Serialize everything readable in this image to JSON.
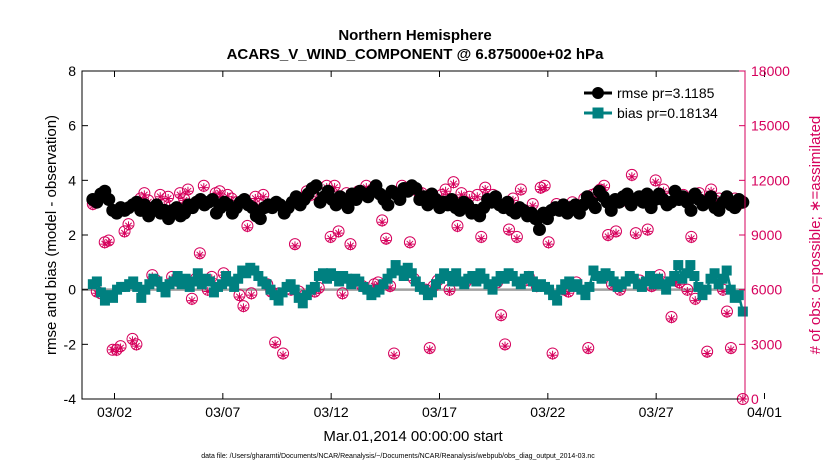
{
  "chart_data": {
    "type": "line",
    "title": "Northern Hemisphere",
    "subtitle": "ACARS_V_WIND_COMPONENT @ 6.875000e+02 hPa",
    "xlabel": "Mar.01,2014 00:00:00 start",
    "ylabel_left": "rmse and bias (model - observation)",
    "ylabel_right": "# of obs: o=possible; ∗=assimilated",
    "footnote": "data file: /Users/gharamti/Documents/NCAR/Reanalysis/~/Documents/NCAR/Reanalysis/webpub/obs_diag_output_2014-03.nc",
    "xlim": [
      0.5,
      31.1
    ],
    "ylim_left": [
      -4,
      8
    ],
    "ylim_right": [
      0,
      18000
    ],
    "x_ticks": [
      2,
      7,
      12,
      17,
      22,
      27,
      32
    ],
    "x_tick_labels": [
      "03/02",
      "03/07",
      "03/12",
      "03/17",
      "03/22",
      "03/27",
      "04/01"
    ],
    "yticks_left": [
      -4,
      -2,
      0,
      2,
      4,
      6,
      8
    ],
    "yticks_left_labels": [
      "-4",
      "-2",
      "0",
      "2",
      "4",
      "6",
      "8"
    ],
    "yticks_right": [
      0,
      3000,
      6000,
      9000,
      12000,
      15000,
      18000
    ],
    "yticks_right_labels": [
      "0",
      "3000",
      "6000",
      "9000",
      "12000",
      "15000",
      "18000"
    ],
    "legend_position": "top-right",
    "colors": {
      "rmse": "#000000",
      "bias": "#008080",
      "obs": "#d6005c",
      "zero_line": "#a0a0a0"
    },
    "series": [
      {
        "name": "rmse pr=3.1185",
        "axis": "left",
        "marker": "circle",
        "values": [
          3.3,
          3.2,
          3.5,
          3.6,
          3.3,
          2.9,
          2.8,
          3.0,
          2.9,
          3.0,
          3.1,
          3.2,
          2.9,
          3.1,
          2.7,
          2.9,
          3.1,
          2.8,
          2.9,
          2.6,
          2.9,
          3.0,
          2.7,
          2.8,
          3.1,
          3.0,
          3.2,
          3.3,
          3.1,
          3.2,
          3.3,
          2.8,
          3.0,
          3.2,
          3.1,
          2.8,
          3.0,
          3.2,
          3.3,
          3.1,
          3.0,
          2.7,
          2.6,
          3.0,
          3.1,
          3.0,
          3.2,
          3.1,
          2.8,
          3.0,
          3.2,
          3.4,
          3.1,
          3.3,
          3.5,
          3.7,
          3.8,
          3.2,
          3.4,
          3.6,
          3.3,
          3.1,
          3.4,
          3.2,
          3.0,
          3.5,
          3.3,
          3.6,
          3.5,
          3.4,
          3.6,
          3.8,
          3.5,
          3.3,
          3.1,
          3.6,
          3.5,
          3.3,
          3.7,
          3.6,
          3.8,
          3.7,
          3.3,
          3.4,
          3.1,
          3.5,
          3.3,
          3.0,
          3.2,
          3.1,
          3.3,
          3.0,
          2.9,
          3.2,
          3.1,
          2.8,
          2.9,
          2.7,
          3.0,
          3.3,
          3.2,
          3.4,
          3.1,
          3.0,
          3.2,
          2.9,
          2.8,
          3.0,
          2.9,
          2.7,
          2.8,
          2.6,
          2.2,
          2.8,
          2.6,
          2.9,
          3.0,
          2.9,
          3.1,
          2.8,
          3.0,
          3.1,
          2.8,
          3.1,
          3.4,
          3.2,
          3.0,
          3.6,
          3.4,
          3.2,
          2.9,
          3.3,
          3.2,
          3.4,
          3.5,
          3.1,
          3.3,
          3.4,
          3.2,
          3.5,
          3.0,
          3.3,
          3.5,
          3.3,
          3.1,
          3.2,
          3.6,
          3.3,
          3.4,
          3.2,
          2.9,
          3.5,
          3.3,
          3.1,
          3.2,
          3.4,
          3.0,
          2.9,
          3.2,
          3.4,
          3.1,
          3.0,
          3.3,
          3.2
        ]
      },
      {
        "name": "bias pr=0.18134",
        "axis": "left",
        "marker": "square",
        "values": [
          0.2,
          0.3,
          -0.1,
          -0.4,
          -0.2,
          -0.3,
          0.0,
          0.1,
          0.1,
          0.2,
          0.3,
          0.1,
          -0.3,
          0.0,
          0.2,
          0.4,
          0.3,
          0.1,
          -0.1,
          0.2,
          0.3,
          0.5,
          0.2,
          0.4,
          0.1,
          0.3,
          0.6,
          0.2,
          0.4,
          0.3,
          -0.1,
          0.1,
          0.2,
          0.5,
          0.3,
          0.1,
          0.4,
          0.7,
          0.6,
          0.8,
          0.7,
          0.5,
          0.3,
          0.2,
          0.0,
          -0.2,
          -0.4,
          -0.1,
          0.1,
          0.2,
          0.0,
          -0.3,
          -0.5,
          -0.2,
          0.0,
          0.1,
          0.5,
          0.6,
          0.4,
          0.6,
          0.5,
          0.3,
          0.5,
          0.4,
          0.2,
          0.4,
          0.3,
          0.1,
          0.0,
          -0.2,
          -0.1,
          0.0,
          0.2,
          0.4,
          0.6,
          0.9,
          0.7,
          0.5,
          0.8,
          0.6,
          0.3,
          0.1,
          0.0,
          -0.2,
          -0.1,
          0.2,
          0.4,
          0.6,
          0.5,
          0.3,
          0.6,
          0.3,
          0.2,
          0.4,
          0.5,
          0.3,
          0.6,
          0.4,
          0.2,
          0.0,
          0.3,
          0.5,
          0.4,
          0.6,
          0.5,
          0.3,
          0.2,
          0.4,
          0.5,
          0.3,
          0.1,
          0.2,
          0.1,
          0.0,
          -0.2,
          -0.4,
          0.0,
          0.2,
          0.3,
          0.1,
          0.2,
          0.0,
          -0.2,
          0.1,
          0.7,
          0.5,
          0.4,
          0.6,
          0.5,
          0.3,
          0.1,
          0.2,
          0.3,
          0.5,
          0.4,
          0.2,
          0.1,
          0.3,
          0.5,
          0.2,
          0.4,
          0.2,
          0.0,
          0.3,
          0.5,
          0.9,
          0.4,
          0.6,
          0.9,
          0.5,
          0.1,
          -0.2,
          0.0,
          0.4,
          0.6,
          0.2,
          0.4,
          0.7,
          0.0,
          -0.3,
          -0.2,
          -0.8
        ]
      },
      {
        "name": "obs possible",
        "axis": "right",
        "marker": "open-circle",
        "values": [
          10700,
          5900,
          5800,
          8600,
          8700,
          2700,
          2700,
          2900,
          9200,
          9600,
          3300,
          3000,
          11000,
          11300,
          10900,
          6800,
          6500,
          11200,
          10700,
          11100,
          6700,
          6500,
          11300,
          11000,
          11500,
          5500,
          6600,
          8000,
          11700,
          6000,
          6700,
          11300,
          11400,
          6900,
          11200,
          11000,
          10800,
          5700,
          5100,
          9500,
          5800,
          11100,
          10700,
          11200,
          6300,
          5900,
          3100,
          5800,
          2500,
          10500,
          6000,
          8500,
          5900,
          10900,
          11400,
          11200,
          5900,
          6100,
          11000,
          11700,
          8900,
          11700,
          9200,
          5800,
          11300,
          8500,
          11200,
          11400,
          6200,
          11700,
          11300,
          6300,
          6400,
          9800,
          8800,
          6200,
          2500,
          11200,
          11700,
          11500,
          8600,
          6600,
          11400,
          11300,
          6000,
          2800,
          6200,
          6500,
          11200,
          11500,
          6000,
          11900,
          9500,
          11300,
          6400,
          11100,
          6600,
          11200,
          8900,
          11600,
          10800,
          11200,
          6400,
          4600,
          3000,
          9300,
          11000,
          8900,
          11500,
          6500,
          6700,
          10700,
          6200,
          11600,
          11700,
          8600,
          2500,
          10700,
          10400,
          6000,
          5900,
          10800,
          6400,
          10600,
          11000,
          2800,
          11200,
          11300,
          11500,
          11700,
          9000,
          6300,
          9200,
          6000,
          10900,
          11000,
          12300,
          9100,
          6500,
          11000,
          9300,
          6200,
          12000,
          6800,
          11500,
          11000,
          4500,
          6500,
          6400,
          11200,
          6000,
          8900,
          5500,
          11300,
          10800,
          2600,
          11500,
          10900,
          11000,
          6000,
          4800,
          2800,
          11000,
          10700,
          0
        ]
      },
      {
        "name": "obs assimilated",
        "axis": "right",
        "marker": "asterisk",
        "values": [
          10600,
          5800,
          5700,
          8500,
          8600,
          2700,
          2600,
          2800,
          9100,
          9500,
          3200,
          2900,
          10900,
          11200,
          10800,
          6700,
          6400,
          11100,
          10600,
          11000,
          6600,
          6400,
          11200,
          10900,
          11400,
          5400,
          6500,
          7900,
          11600,
          5900,
          6600,
          11200,
          11300,
          6800,
          11100,
          10900,
          10700,
          5600,
          5000,
          9400,
          5700,
          11000,
          10600,
          11100,
          6200,
          5800,
          3000,
          5700,
          2400,
          10400,
          5900,
          8400,
          5800,
          10800,
          11300,
          11100,
          5800,
          6000,
          10900,
          11600,
          8800,
          11600,
          9100,
          5700,
          11200,
          8400,
          11100,
          11300,
          6100,
          11600,
          11200,
          6200,
          6300,
          9700,
          8700,
          6100,
          2400,
          11100,
          11600,
          11400,
          8500,
          6500,
          11300,
          11200,
          5900,
          2700,
          6100,
          6400,
          11100,
          11400,
          5900,
          11800,
          9400,
          11200,
          6300,
          11000,
          6500,
          11100,
          8800,
          11500,
          10700,
          11100,
          6300,
          4500,
          2900,
          9200,
          10900,
          8800,
          11400,
          6400,
          6600,
          10600,
          6100,
          11500,
          11600,
          8500,
          2400,
          10600,
          10300,
          5900,
          5800,
          10700,
          6300,
          10500,
          10900,
          2700,
          11100,
          11200,
          11400,
          11600,
          8900,
          6200,
          9100,
          5900,
          10800,
          10900,
          12200,
          9000,
          6400,
          10900,
          9200,
          6100,
          11900,
          6700,
          11400,
          10900,
          4400,
          6400,
          6300,
          11100,
          5900,
          8800,
          5400,
          11200,
          10700,
          2500,
          11400,
          10800,
          10900,
          5900,
          4700,
          2700,
          10900,
          10600,
          0
        ]
      }
    ]
  }
}
